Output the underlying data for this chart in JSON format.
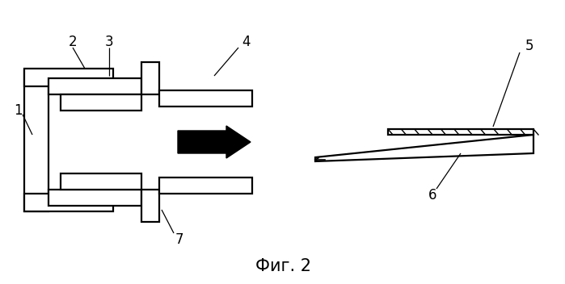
{
  "bg_color": "#ffffff",
  "line_color": "#000000",
  "lw": 1.6,
  "fig_caption": "Фиг. 2",
  "caption_fontsize": 15
}
